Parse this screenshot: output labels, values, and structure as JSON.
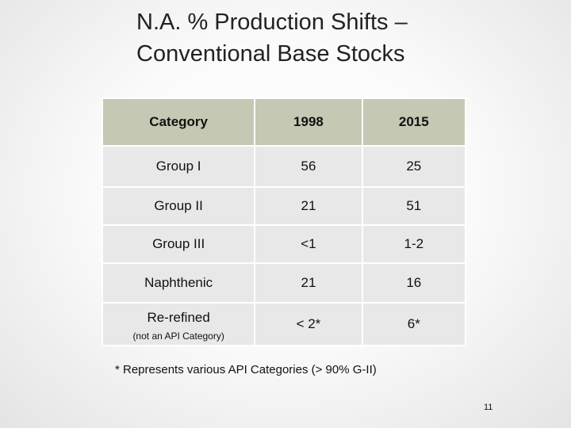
{
  "title": {
    "lines": [
      "N.A. % Production Shifts –",
      "Conventional Base Stocks"
    ]
  },
  "table": {
    "header": [
      "Category",
      "1998",
      "2015"
    ],
    "rows": [
      [
        "Group I",
        "56",
        "25"
      ],
      [
        "Group II",
        "21",
        "51"
      ],
      [
        "Group III",
        "<1",
        "1-2"
      ],
      [
        "Naphthenic",
        "21",
        "16"
      ],
      [
        "Re-refined",
        "< 2*",
        "6*"
      ]
    ],
    "row_note": {
      "row": 4,
      "text": "(not an API Category)"
    }
  },
  "footnote": "* Represents various API Categories (> 90% G-II)",
  "page_number": "11"
}
